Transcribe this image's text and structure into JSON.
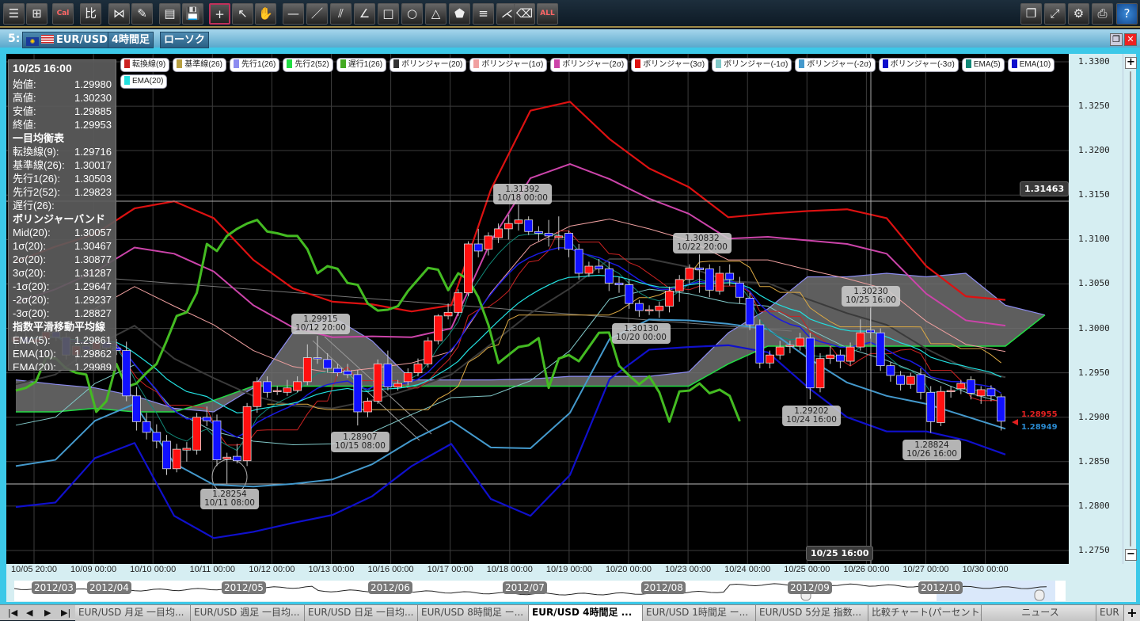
{
  "toolbar": {
    "left": [
      {
        "icon": "list-icon",
        "g": "☰"
      },
      {
        "icon": "add-chart-icon",
        "g": "⊞"
      },
      {
        "icon": "calendar-icon",
        "g": "Cal"
      },
      {
        "icon": "compare-icon",
        "g": "比"
      },
      {
        "icon": "indicator-icon",
        "g": "⋈"
      },
      {
        "icon": "pencil-icon",
        "g": "✎"
      },
      {
        "icon": "window-settings-icon",
        "g": "▤"
      },
      {
        "icon": "save-icon",
        "g": "💾"
      },
      {
        "icon": "crosshair-icon",
        "g": "+",
        "active": true
      },
      {
        "icon": "pointer-icon",
        "g": "↖"
      },
      {
        "icon": "hand-icon",
        "g": "✋"
      },
      {
        "icon": "horizontal-line-icon",
        "g": "—"
      },
      {
        "icon": "trend-line-icon",
        "g": "／"
      },
      {
        "icon": "parallel-lines-icon",
        "g": "⫽"
      },
      {
        "icon": "fibonacci-icon",
        "g": "∠"
      },
      {
        "icon": "rectangle-icon",
        "g": "□"
      },
      {
        "icon": "circle-icon",
        "g": "○"
      },
      {
        "icon": "triangle-icon",
        "g": "△"
      },
      {
        "icon": "pentagon-icon",
        "g": "⬟"
      },
      {
        "icon": "fib-retracement-icon",
        "g": "≡"
      },
      {
        "icon": "fan-icon",
        "g": "⋌"
      },
      {
        "icon": "eraser-icon",
        "g": "⌫"
      },
      {
        "icon": "erase-all-icon",
        "g": "ALL"
      }
    ],
    "right": [
      {
        "icon": "windows-icon",
        "g": "❐"
      },
      {
        "icon": "fullscreen-icon",
        "g": "⤢"
      },
      {
        "icon": "gear-icon",
        "g": "⚙"
      },
      {
        "icon": "print-icon",
        "g": "⎙"
      },
      {
        "icon": "help-icon",
        "g": "?"
      }
    ]
  },
  "chart_window": {
    "number": "5:",
    "symbol": "EUR/USD",
    "timeframe": "4時間足",
    "chart_type": "ローソク"
  },
  "legend": [
    {
      "label": "転換線(9)",
      "color": "#cc2222"
    },
    {
      "label": "基準線(26)",
      "color": "#b8a040"
    },
    {
      "label": "先行1(26)",
      "color": "#8c8cf0"
    },
    {
      "label": "先行2(52)",
      "color": "#22dd44"
    },
    {
      "label": "遅行1(26)",
      "color": "#44aa22"
    },
    {
      "label": "ボリンジャー(20)",
      "color": "#333333"
    },
    {
      "label": "ボリンジャー(1σ)",
      "color": "#f0a0a0"
    },
    {
      "label": "ボリンジャー(2σ)",
      "color": "#cc44aa"
    },
    {
      "label": "ボリンジャー(3σ)",
      "color": "#dd1111"
    },
    {
      "label": "ボリンジャー(-1σ)",
      "color": "#80c8c8"
    },
    {
      "label": "ボリンジャー(-2σ)",
      "color": "#4499cc"
    },
    {
      "label": "ボリンジャー(-3σ)",
      "color": "#1010cc"
    },
    {
      "label": "EMA(5)",
      "color": "#118877"
    },
    {
      "label": "EMA(10)",
      "color": "#1010cc"
    },
    {
      "label": "EMA(20)",
      "color": "#22e0e0"
    }
  ],
  "info": {
    "time": "10/25 16:00",
    "rows1": [
      [
        "始値:",
        "1.29980"
      ],
      [
        "高値:",
        "1.30230"
      ],
      [
        "安値:",
        "1.29885"
      ],
      [
        "終値:",
        "1.29953"
      ]
    ],
    "h_ichimoku": "一目均衡表",
    "rows2": [
      [
        "転換線(9):",
        "1.29716"
      ],
      [
        "基準線(26):",
        "1.30017"
      ],
      [
        "先行1(26):",
        "1.30503"
      ],
      [
        "先行2(52):",
        "1.29823"
      ],
      [
        "遅行(26):",
        ""
      ]
    ],
    "h_bb": "ボリンジャーバンド",
    "rows3": [
      [
        "Mid(20):",
        "1.30057"
      ],
      [
        "1σ(20):",
        "1.30467"
      ],
      [
        "2σ(20):",
        "1.30877"
      ],
      [
        "3σ(20):",
        "1.31287"
      ],
      [
        "-1σ(20):",
        "1.29647"
      ],
      [
        "-2σ(20):",
        "1.29237"
      ],
      [
        "-3σ(20):",
        "1.28827"
      ]
    ],
    "h_ema": "指数平滑移動平均線",
    "rows4": [
      [
        "EMA(5):",
        "1.29861"
      ],
      [
        "EMA(10):",
        "1.29862"
      ],
      [
        "EMA(20):",
        "1.29989"
      ]
    ]
  },
  "annotations": [
    {
      "price": "1.31392",
      "time": "10/18 00:00"
    },
    {
      "price": "1.30832",
      "time": "10/22 20:00"
    },
    {
      "price": "1.30230",
      "time": "10/25 16:00"
    },
    {
      "price": "1.29915",
      "time": "10/12 20:00"
    },
    {
      "price": "1.30130",
      "time": "10/20 00:00"
    },
    {
      "price": "1.28907",
      "time": "10/15 08:00"
    },
    {
      "price": "1.28254",
      "time": "10/11 08:00"
    },
    {
      "price": "1.29202",
      "time": "10/24 16:00"
    },
    {
      "price": "1.28824",
      "time": "10/26 16:00"
    }
  ],
  "crosshair": {
    "price": "1.31463",
    "time": "10/25 16:00"
  },
  "last_prices": {
    "bid": "1.28955",
    "ask": "1.28949",
    "bid_color": "#e02020",
    "ask_color": "#2a8ad0"
  },
  "colors": {
    "up_candle": "#ff1010",
    "down_candle": "#1010ff",
    "background": "#000000"
  },
  "chart_data": {
    "type": "candlestick",
    "ylim": [
      1.275,
      1.33
    ],
    "yticks": [
      "1.3300",
      "1.3250",
      "1.3200",
      "1.3150",
      "1.3100",
      "1.3050",
      "1.3000",
      "1.2950",
      "1.2900",
      "1.2850",
      "1.2800",
      "1.2750"
    ],
    "xticks": [
      "10/05 20:00",
      "10/09 00:00",
      "10/10 00:00",
      "10/11 00:00",
      "10/12 00:00",
      "10/13 00:00",
      "10/16 00:00",
      "10/17 00:00",
      "10/18 00:00",
      "10/19 00:00",
      "10/20 00:00",
      "10/23 00:00",
      "10/24 00:00",
      "10/25 00:00",
      "10/26 00:00",
      "10/27 00:00",
      "10/30 00:00"
    ],
    "grid": true,
    "candles_ohlc": [
      [
        1.2985,
        1.2995,
        1.2978,
        1.299
      ],
      [
        1.299,
        1.2998,
        1.2982,
        1.2984
      ],
      [
        1.2984,
        1.2992,
        1.2975,
        1.2988
      ],
      [
        1.2988,
        1.3,
        1.2983,
        1.2996
      ],
      [
        1.2996,
        1.3004,
        1.2986,
        1.299
      ],
      [
        1.299,
        1.2995,
        1.2965,
        1.297
      ],
      [
        1.297,
        1.2985,
        1.2962,
        1.298
      ],
      [
        1.298,
        1.2992,
        1.2972,
        1.2976
      ],
      [
        1.2976,
        1.299,
        1.297,
        1.2985
      ],
      [
        1.2985,
        1.2992,
        1.2975,
        1.2978
      ],
      [
        1.2978,
        1.2988,
        1.297,
        1.2975
      ],
      [
        1.2975,
        1.2985,
        1.2918,
        1.2924
      ],
      [
        1.2924,
        1.2934,
        1.2885,
        1.2895
      ],
      [
        1.2895,
        1.2905,
        1.2875,
        1.2883
      ],
      [
        1.2883,
        1.2892,
        1.2865,
        1.2873
      ],
      [
        1.2873,
        1.288,
        1.2835,
        1.2842
      ],
      [
        1.2842,
        1.287,
        1.2838,
        1.2864
      ],
      [
        1.2863,
        1.2872,
        1.285,
        1.2865
      ],
      [
        1.2863,
        1.2905,
        1.2858,
        1.29
      ],
      [
        1.29,
        1.2912,
        1.289,
        1.2896
      ],
      [
        1.2896,
        1.2903,
        1.2845,
        1.2852
      ],
      [
        1.2853,
        1.286,
        1.28254,
        1.2855
      ],
      [
        1.2856,
        1.287,
        1.2848,
        1.2851
      ],
      [
        1.2851,
        1.2916,
        1.2845,
        1.2912
      ],
      [
        1.2912,
        1.2945,
        1.2905,
        1.294
      ],
      [
        1.294,
        1.2946,
        1.2922,
        1.2928
      ],
      [
        1.2929,
        1.2935,
        1.2925,
        1.293
      ],
      [
        1.2928,
        1.2942,
        1.2924,
        1.2933
      ],
      [
        1.293,
        1.2946,
        1.2928,
        1.294
      ],
      [
        1.294,
        1.2982,
        1.2936,
        1.2967
      ],
      [
        1.2967,
        1.29915,
        1.296,
        1.2966
      ],
      [
        1.2965,
        1.2972,
        1.295,
        1.2955
      ],
      [
        1.2955,
        1.296,
        1.2946,
        1.295
      ],
      [
        1.2952,
        1.296,
        1.2944,
        1.2948
      ],
      [
        1.2948,
        1.2953,
        1.28907,
        1.2906
      ],
      [
        1.2906,
        1.2922,
        1.29,
        1.2918
      ],
      [
        1.2918,
        1.2965,
        1.2915,
        1.296
      ],
      [
        1.296,
        1.2975,
        1.293,
        1.2934
      ],
      [
        1.2934,
        1.2942,
        1.293,
        1.2938
      ],
      [
        1.294,
        1.2955,
        1.2936,
        1.295
      ],
      [
        1.295,
        1.2966,
        1.2946,
        1.296
      ],
      [
        1.296,
        1.299,
        1.2956,
        1.2986
      ],
      [
        1.2986,
        1.3016,
        1.2982,
        1.3014
      ],
      [
        1.3014,
        1.3028,
        1.301,
        1.3018
      ],
      [
        1.3018,
        1.3044,
        1.3014,
        1.304
      ],
      [
        1.304,
        1.3098,
        1.3036,
        1.3095
      ],
      [
        1.3095,
        1.3112,
        1.308,
        1.3087
      ],
      [
        1.3089,
        1.3108,
        1.3082,
        1.3104
      ],
      [
        1.3102,
        1.3118,
        1.3096,
        1.3112
      ],
      [
        1.3112,
        1.3128,
        1.31,
        1.3118
      ],
      [
        1.3118,
        1.31392,
        1.311,
        1.3122
      ],
      [
        1.3122,
        1.3126,
        1.3105,
        1.3109
      ],
      [
        1.3109,
        1.3115,
        1.3098,
        1.3107
      ],
      [
        1.3107,
        1.3122,
        1.3092,
        1.3104
      ],
      [
        1.3102,
        1.3126,
        1.3088,
        1.3104
      ],
      [
        1.3107,
        1.311,
        1.308,
        1.3089
      ],
      [
        1.3089,
        1.3095,
        1.3055,
        1.3062
      ],
      [
        1.3062,
        1.3075,
        1.3058,
        1.307
      ],
      [
        1.307,
        1.3078,
        1.3062,
        1.3067
      ],
      [
        1.3067,
        1.3075,
        1.3042,
        1.3051
      ],
      [
        1.3051,
        1.3058,
        1.304,
        1.3049
      ],
      [
        1.3049,
        1.3055,
        1.3022,
        1.3028
      ],
      [
        1.3028,
        1.3032,
        1.3013,
        1.302
      ],
      [
        1.302,
        1.3026,
        1.3015,
        1.3021
      ],
      [
        1.302,
        1.303,
        1.3012,
        1.3025
      ],
      [
        1.3025,
        1.3047,
        1.3018,
        1.3042
      ],
      [
        1.3042,
        1.306,
        1.303,
        1.3055
      ],
      [
        1.3055,
        1.3072,
        1.305,
        1.3068
      ],
      [
        1.3068,
        1.30832,
        1.304,
        1.3066
      ],
      [
        1.3067,
        1.3072,
        1.3035,
        1.3043
      ],
      [
        1.3042,
        1.307,
        1.3038,
        1.3062
      ],
      [
        1.3062,
        1.3072,
        1.3048,
        1.3055
      ],
      [
        1.3051,
        1.3058,
        1.3028,
        1.3035
      ],
      [
        1.3034,
        1.304,
        1.2998,
        1.3004
      ],
      [
        1.3004,
        1.301,
        1.2955,
        1.2961
      ],
      [
        1.2961,
        1.2975,
        1.2955,
        1.297
      ],
      [
        1.297,
        1.2986,
        1.2965,
        1.2979
      ],
      [
        1.298,
        1.2986,
        1.2972,
        1.2981
      ],
      [
        1.298,
        1.2995,
        1.2975,
        1.2989
      ],
      [
        1.2989,
        1.2995,
        1.29202,
        1.2933
      ],
      [
        1.2933,
        1.2972,
        1.2928,
        1.2966
      ],
      [
        1.2966,
        1.298,
        1.296,
        1.297
      ],
      [
        1.297,
        1.2976,
        1.2955,
        1.2963
      ],
      [
        1.2963,
        1.2984,
        1.2958,
        1.2979
      ],
      [
        1.2979,
        1.301,
        1.2975,
        1.2995
      ],
      [
        1.2998,
        1.3023,
        1.29885,
        1.29953
      ],
      [
        1.2995,
        1.3,
        1.2952,
        1.2958
      ],
      [
        1.2958,
        1.2962,
        1.294,
        1.2947
      ],
      [
        1.2947,
        1.2952,
        1.293,
        1.2937
      ],
      [
        1.2937,
        1.295,
        1.2932,
        1.2946
      ],
      [
        1.2948,
        1.2955,
        1.292,
        1.2928
      ],
      [
        1.2928,
        1.2935,
        1.28824,
        1.2895
      ],
      [
        1.2894,
        1.2935,
        1.289,
        1.2929
      ],
      [
        1.2929,
        1.2935,
        1.2922,
        1.293
      ],
      [
        1.2932,
        1.2942,
        1.2926,
        1.2938
      ],
      [
        1.2942,
        1.2946,
        1.292,
        1.2927
      ],
      [
        1.2924,
        1.2935,
        1.2915,
        1.2931
      ],
      [
        1.2932,
        1.2936,
        1.2918,
        1.2924
      ],
      [
        1.2923,
        1.2926,
        1.2885,
        1.28955
      ]
    ],
    "bollinger_mid": [
      1.2937,
      1.2948,
      1.298,
      1.3003,
      1.2966,
      1.2944,
      1.2924,
      1.2913,
      1.291,
      1.2919,
      1.2932,
      1.2948,
      1.2982,
      1.3017,
      1.3045,
      1.3078,
      1.3078,
      1.3069,
      1.3053,
      1.3051,
      1.3033,
      1.3017,
      1.3004,
      1.2977,
      1.2955,
      1.2945
    ],
    "bollinger_sigma": [
      0.0046,
      0.0048,
      0.0042,
      0.0044,
      0.0059,
      0.006,
      0.0051,
      0.0044,
      0.004,
      0.0036,
      0.0029,
      0.0026,
      0.0058,
      0.0076,
      0.007,
      0.0045,
      0.0034,
      0.003,
      0.0024,
      0.0026,
      0.0033,
      0.0039,
      0.004,
      0.0031,
      0.0027,
      0.0029
    ],
    "senkou1": [
      1.2942,
      1.2937,
      1.2933,
      1.2924,
      1.291,
      1.2906,
      1.2933,
      1.2995,
      1.3013,
      1.2986,
      1.2942,
      1.2942,
      1.2942,
      1.2943,
      1.2946,
      1.2946,
      1.2946,
      1.2951,
      1.2995,
      1.3022,
      1.3058,
      1.3058,
      1.3062,
      1.3058,
      1.3062,
      1.3026,
      1.3015
    ],
    "senkou2": [
      1.2906,
      1.2906,
      1.291,
      1.2906,
      1.2906,
      1.2919,
      1.2935,
      1.2935,
      1.2935,
      1.2935,
      1.2935,
      1.2935,
      1.2935,
      1.2935,
      1.2935,
      1.2935,
      1.2935,
      1.2935,
      1.296,
      1.298,
      1.298,
      1.298,
      1.298,
      1.298,
      1.298,
      1.298,
      1.3015
    ]
  },
  "x_axis_labels_ref": "chart_data.xticks",
  "navigator": {
    "labels": [
      "2012/03",
      "2012/04",
      "2012/05",
      "2012/06",
      "2012/07",
      "2012/08",
      "2012/09",
      "2012/10"
    ]
  },
  "tabs": {
    "items": [
      "EUR/USD 月足 一目均...",
      "EUR/USD 週足 一目均...",
      "EUR/USD 日足 一目均...",
      "EUR/USD 8時間足 ー...",
      "EUR/USD 4時間足 ...",
      "EUR/USD 1時間足 ー...",
      "EUR/USD 5分足 指数...",
      "比較チャート(パーセント...",
      "ニュース",
      "EUR"
    ],
    "active": 4,
    "add": "+"
  }
}
